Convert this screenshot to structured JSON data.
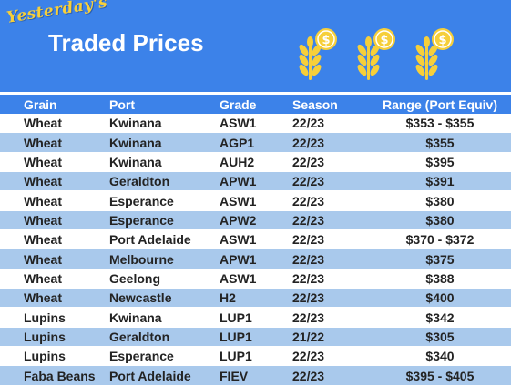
{
  "header": {
    "script_title": "Yesterday's",
    "title": "Traded Prices",
    "icons": [
      "wheat-coin-icon",
      "wheat-coin-icon",
      "wheat-coin-icon"
    ],
    "colors": {
      "banner": "#3c82e9",
      "accent": "#f6cf3a",
      "row_alt": "#a9c9ec"
    }
  },
  "table": {
    "columns": [
      "Grain",
      "Port",
      "Grade",
      "Season",
      "Range (Port Equiv)"
    ],
    "rows": [
      [
        "Wheat",
        "Kwinana",
        "ASW1",
        "22/23",
        "$353 - $355"
      ],
      [
        "Wheat",
        "Kwinana",
        "AGP1",
        "22/23",
        "$355"
      ],
      [
        "Wheat",
        "Kwinana",
        "AUH2",
        "22/23",
        "$395"
      ],
      [
        "Wheat",
        "Geraldton",
        "APW1",
        "22/23",
        "$391"
      ],
      [
        "Wheat",
        "Esperance",
        "ASW1",
        "22/23",
        "$380"
      ],
      [
        "Wheat",
        "Esperance",
        "APW2",
        "22/23",
        "$380"
      ],
      [
        "Wheat",
        "Port Adelaide",
        "ASW1",
        "22/23",
        "$370 - $372"
      ],
      [
        "Wheat",
        "Melbourne",
        "APW1",
        "22/23",
        "$375"
      ],
      [
        "Wheat",
        "Geelong",
        "ASW1",
        "22/23",
        "$388"
      ],
      [
        "Wheat",
        "Newcastle",
        "H2",
        "22/23",
        "$400"
      ],
      [
        "Lupins",
        "Kwinana",
        "LUP1",
        "22/23",
        "$342"
      ],
      [
        "Lupins",
        "Geraldton",
        "LUP1",
        "21/22",
        "$305"
      ],
      [
        "Lupins",
        "Esperance",
        "LUP1",
        "22/23",
        "$340"
      ],
      [
        "Faba Beans",
        "Port Adelaide",
        "FIEV",
        "22/23",
        "$395 - $405"
      ]
    ]
  }
}
